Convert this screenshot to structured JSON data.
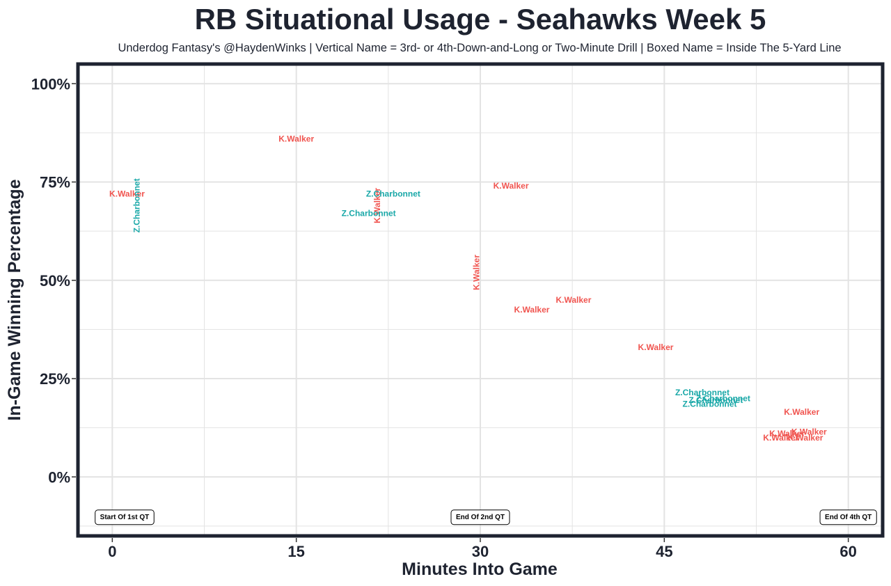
{
  "header": {
    "title": "RB Situational Usage - Seahawks Week 5",
    "subtitle": "Underdog Fantasy's @HaydenWinks | Vertical Name = 3rd- or 4th-Down-and-Long or Two-Minute Drill | Boxed Name = Inside The 5-Yard Line"
  },
  "colors": {
    "walker": "#f0544f",
    "charbonnet": "#1aa8a8",
    "frame": "#1e2330",
    "grid": "#e3e3e3"
  },
  "chart_data": {
    "type": "scatter",
    "title": "RB Situational Usage - Seahawks Week 5",
    "xlabel": "Minutes Into Game",
    "ylabel": "In-Game Winning Percentage",
    "xlim": [
      -2.8,
      62.8
    ],
    "ylim": [
      -15,
      105
    ],
    "x_ticks": [
      0,
      15,
      30,
      45,
      60
    ],
    "x_tick_labels": [
      "0",
      "15",
      "30",
      "45",
      "60"
    ],
    "y_ticks": [
      0,
      25,
      50,
      75,
      100
    ],
    "y_tick_labels": [
      "0%",
      "25%",
      "50%",
      "75%",
      "100%"
    ],
    "grid": true,
    "series": [
      {
        "name": "K.Walker",
        "color_key": "walker",
        "points": [
          {
            "x": 1.2,
            "y": 72,
            "label": "K.Walker",
            "vertical": false
          },
          {
            "x": 15.0,
            "y": 86,
            "label": "K.Walker",
            "vertical": false
          },
          {
            "x": 21.6,
            "y": 69,
            "label": "K.Walker",
            "vertical": true
          },
          {
            "x": 29.7,
            "y": 52,
            "label": "K.Walker",
            "vertical": true
          },
          {
            "x": 32.5,
            "y": 74,
            "label": "K.Walker",
            "vertical": false
          },
          {
            "x": 34.2,
            "y": 42.5,
            "label": "K.Walker",
            "vertical": false
          },
          {
            "x": 37.6,
            "y": 45,
            "label": "K.Walker",
            "vertical": false
          },
          {
            "x": 44.3,
            "y": 33,
            "label": "K.Walker",
            "vertical": false
          },
          {
            "x": 56.2,
            "y": 16.5,
            "label": "K.Walker",
            "vertical": false
          },
          {
            "x": 55.0,
            "y": 11,
            "label": "K.Walker",
            "vertical": false
          },
          {
            "x": 56.8,
            "y": 11.5,
            "label": "K.Walker",
            "vertical": false
          },
          {
            "x": 54.5,
            "y": 10,
            "label": "K.Walker",
            "vertical": false
          },
          {
            "x": 56.5,
            "y": 10,
            "label": "K.Walker",
            "vertical": false
          }
        ]
      },
      {
        "name": "Z.Charbonnet",
        "color_key": "charbonnet",
        "points": [
          {
            "x": 2.0,
            "y": 69,
            "label": "Z.Charbonnet",
            "vertical": true
          },
          {
            "x": 22.9,
            "y": 72,
            "label": "Z.Charbonnet",
            "vertical": false
          },
          {
            "x": 20.9,
            "y": 67,
            "label": "Z.Charbonnet",
            "vertical": false
          },
          {
            "x": 48.1,
            "y": 21.5,
            "label": "Z.Charbonnet",
            "vertical": false
          },
          {
            "x": 49.2,
            "y": 19.5,
            "label": "Z.Charbonnet",
            "vertical": false
          },
          {
            "x": 49.8,
            "y": 20,
            "label": "Z.Charbonnet",
            "vertical": false
          },
          {
            "x": 48.7,
            "y": 18.5,
            "label": "Z.Charbonnet",
            "vertical": false
          }
        ]
      }
    ],
    "annotations": [
      {
        "x": 1,
        "y": -10,
        "text": "Start Of 1st QT"
      },
      {
        "x": 30,
        "y": -10,
        "text": "End Of 2nd QT"
      },
      {
        "x": 60,
        "y": -10,
        "text": "End Of 4th QT"
      }
    ]
  }
}
